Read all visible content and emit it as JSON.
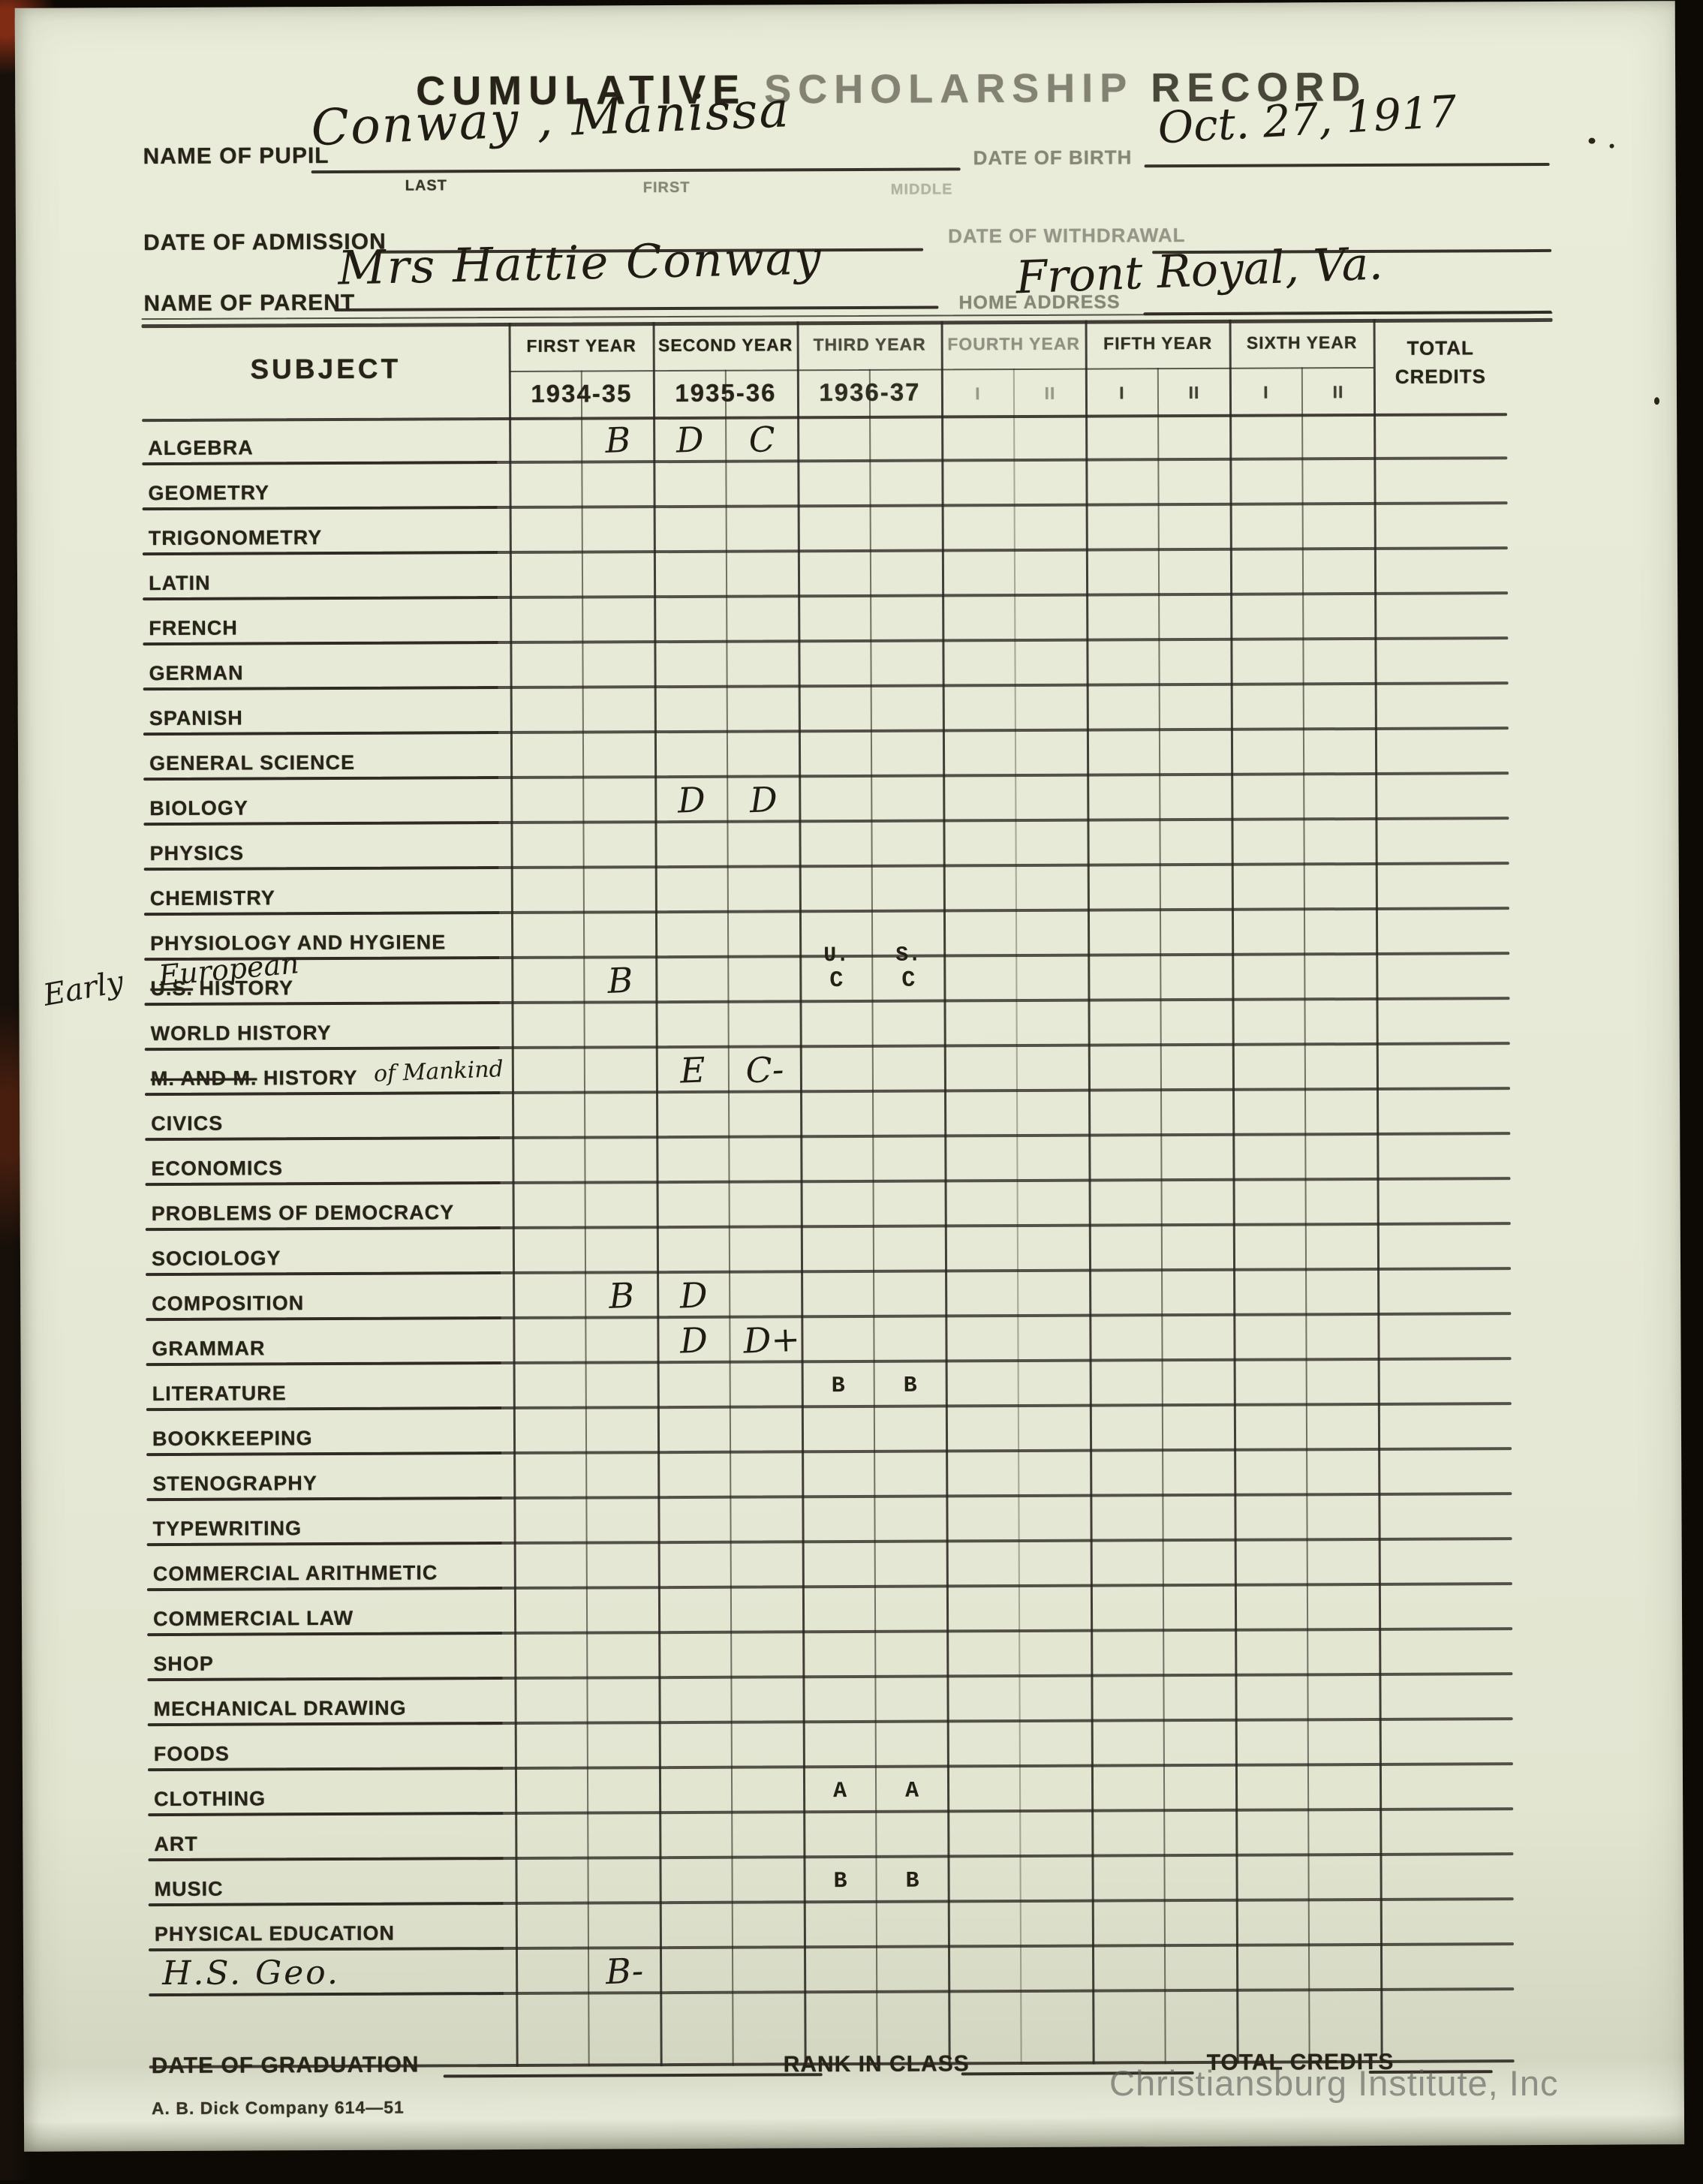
{
  "watermark": "Christiansburg Institute, Inc",
  "title": {
    "word1": "CUMULATIVE",
    "word2": "SCHOLARSHIP",
    "word3": "RECORD"
  },
  "header_fields": {
    "pupil_label": "NAME OF PUPIL",
    "pupil_value": "Conway , Manissa",
    "pupil_sub_last": "LAST",
    "pupil_sub_first": "FIRST",
    "pupil_sub_middle": "MIDDLE",
    "dob_label": "DATE OF BIRTH",
    "dob_value": "Oct. 27, 1917",
    "admission_label": "DATE OF ADMISSION",
    "withdrawal_label": "DATE OF WITHDRAWAL",
    "parent_label": "NAME OF PARENT",
    "parent_value": "Mrs Hattie Conway",
    "address_label": "HOME ADDRESS",
    "address_value": "Front Royal, Va."
  },
  "table": {
    "subject_header": "SUBJECT",
    "total_line1": "TOTAL",
    "total_line2": "CREDITS",
    "years": [
      {
        "label": "FIRST YEAR",
        "term": "1934-35",
        "opacity": 1
      },
      {
        "label": "SECOND YEAR",
        "term": "1935-36",
        "opacity": 1
      },
      {
        "label": "THIRD YEAR",
        "term": "1936-37",
        "opacity": 0.8
      },
      {
        "label": "FOURTH YEAR",
        "sem1": "I",
        "sem2": "II",
        "opacity": 0.45
      },
      {
        "label": "FIFTH YEAR",
        "sem1": "I",
        "sem2": "II",
        "opacity": 0.95
      },
      {
        "label": "SIXTH YEAR",
        "sem1": "I",
        "sem2": "II",
        "opacity": 0.95
      }
    ],
    "rows": [
      {
        "subject": "ALGEBRA",
        "grades": [
          {
            "col": 1,
            "mark": "B",
            "style": "hand"
          },
          {
            "col": 2,
            "mark": "D",
            "style": "hand"
          },
          {
            "col": 3,
            "mark": "C",
            "style": "hand"
          }
        ]
      },
      {
        "subject": "GEOMETRY",
        "grades": []
      },
      {
        "subject": "TRIGONOMETRY",
        "grades": []
      },
      {
        "subject": "LATIN",
        "grades": []
      },
      {
        "subject": "FRENCH",
        "grades": []
      },
      {
        "subject": "GERMAN",
        "grades": []
      },
      {
        "subject": "SPANISH",
        "grades": []
      },
      {
        "subject": "GENERAL SCIENCE",
        "grades": []
      },
      {
        "subject": "BIOLOGY",
        "grades": [
          {
            "col": 2,
            "mark": "D",
            "style": "hand"
          },
          {
            "col": 3,
            "mark": "D",
            "style": "hand"
          }
        ]
      },
      {
        "subject": "PHYSICS",
        "grades": []
      },
      {
        "subject": "CHEMISTRY",
        "grades": []
      },
      {
        "subject": "PHYSIOLOGY AND HYGIENE",
        "grades": []
      },
      {
        "subject": "U.S. HISTORY",
        "strike": "U.S.",
        "rest": " HISTORY",
        "grades": [
          {
            "col": 1,
            "mark": "B",
            "style": "hand"
          },
          {
            "col": 4,
            "mark": "C",
            "style": "typed"
          },
          {
            "col": 5,
            "mark": "C",
            "style": "typed"
          }
        ]
      },
      {
        "subject": "WORLD HISTORY",
        "grades": []
      },
      {
        "subject": "M. AND M. HISTORY",
        "strike": "M. AND M.",
        "rest": " HISTORY",
        "grades": [
          {
            "col": 2,
            "mark": "E",
            "style": "hand"
          },
          {
            "col": 3,
            "mark": "C-",
            "style": "hand"
          }
        ]
      },
      {
        "subject": "CIVICS",
        "grades": []
      },
      {
        "subject": "ECONOMICS",
        "grades": []
      },
      {
        "subject": "PROBLEMS OF DEMOCRACY",
        "grades": []
      },
      {
        "subject": "SOCIOLOGY",
        "grades": []
      },
      {
        "subject": "COMPOSITION",
        "grades": [
          {
            "col": 1,
            "mark": "B",
            "style": "hand"
          },
          {
            "col": 2,
            "mark": "D",
            "style": "hand"
          }
        ]
      },
      {
        "subject": "GRAMMAR",
        "grades": [
          {
            "col": 2,
            "mark": "D",
            "style": "hand"
          },
          {
            "col": 3,
            "mark": "D+",
            "style": "hand"
          }
        ]
      },
      {
        "subject": "LITERATURE",
        "grades": [
          {
            "col": 4,
            "mark": "B",
            "style": "typed"
          },
          {
            "col": 5,
            "mark": "B",
            "style": "typed"
          }
        ]
      },
      {
        "subject": "BOOKKEEPING",
        "grades": []
      },
      {
        "subject": "STENOGRAPHY",
        "grades": []
      },
      {
        "subject": "TYPEWRITING",
        "grades": []
      },
      {
        "subject": "COMMERCIAL ARITHMETIC",
        "grades": []
      },
      {
        "subject": "COMMERCIAL LAW",
        "grades": []
      },
      {
        "subject": "SHOP",
        "grades": []
      },
      {
        "subject": "MECHANICAL DRAWING",
        "grades": []
      },
      {
        "subject": "FOODS",
        "grades": []
      },
      {
        "subject": "CLOTHING",
        "grades": [
          {
            "col": 4,
            "mark": "A",
            "style": "typed"
          },
          {
            "col": 5,
            "mark": "A",
            "style": "typed"
          }
        ]
      },
      {
        "subject": "ART",
        "grades": []
      },
      {
        "subject": "MUSIC",
        "grades": [
          {
            "col": 4,
            "mark": "B",
            "style": "typed"
          },
          {
            "col": 5,
            "mark": "B",
            "style": "typed"
          }
        ]
      },
      {
        "subject": "PHYSICAL EDUCATION",
        "grades": []
      },
      {
        "subject": "H.S. Geo.",
        "hand_label": true,
        "grades": [
          {
            "col": 1,
            "mark": "B-",
            "style": "hand"
          }
        ]
      }
    ]
  },
  "annotations": {
    "margin_note": "Early",
    "over_label_note": "European",
    "subject_suffix_note": "of Mankind",
    "third_year_note": [
      {
        "col": 4,
        "text": "U."
      },
      {
        "col": 5,
        "text": "S."
      }
    ]
  },
  "footer": {
    "graduation_label": "DATE OF GRADUATION",
    "rank_label": "RANK IN CLASS",
    "credits_label": "TOTAL CREDITS",
    "imprint": "A. B. Dick Company  614—51"
  },
  "colors": {
    "paper": "#e6e9d6",
    "ink": "#272318",
    "line": "#2b2720",
    "watermark_gray": "#5c5c58",
    "backing_black": "#0d0a06",
    "backing_brown": "#923016"
  }
}
